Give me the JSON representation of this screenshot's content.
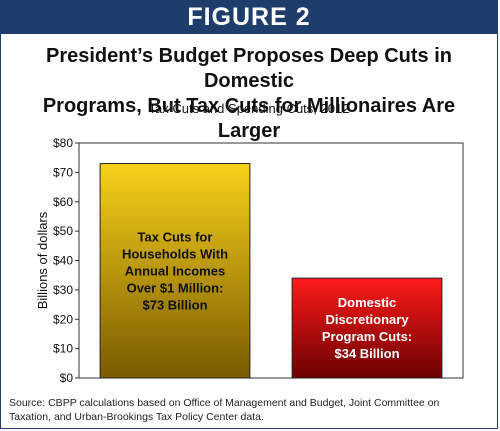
{
  "banner": "FIGURE 2",
  "title_line1": "President’s Budget Proposes Deep Cuts in Domestic",
  "title_line2": "Programs, But Tax Cuts for Millionaires Are Larger",
  "subtitle": "Tax Cuts and Spending Cuts, 2012",
  "source_line1": "Source: CBPP calculations based on Office of Management and Budget, Joint Committee on",
  "source_line2": "Taxation, and Urban-Brookings Tax Policy Center data.",
  "colors": {
    "banner": "#1f3d6b",
    "bar1_top": "#f7d21a",
    "bar1_bottom": "#7a5a00",
    "bar2_top": "#ff1a1a",
    "bar2_bottom": "#6a0000"
  },
  "chart_data": {
    "type": "bar",
    "title": "Tax Cuts and Spending Cuts, 2012",
    "ylabel": "Billions of dollars",
    "ylim": [
      0,
      80
    ],
    "yticks": [
      0,
      10,
      20,
      30,
      40,
      50,
      60,
      70,
      80
    ],
    "ytick_labels": [
      "$0",
      "$10",
      "$20",
      "$30",
      "$40",
      "$50",
      "$60",
      "$70",
      "$80"
    ],
    "grid": false,
    "categories": [
      "Tax Cuts for Households With Annual Incomes Over $1 Million: $73 Billion",
      "Domestic Discretionary Program Cuts: $34 Billion"
    ],
    "values": [
      73,
      34
    ],
    "bar_labels": [
      [
        "Tax Cuts for",
        "Households With",
        "Annual Incomes",
        "Over $1 Million:",
        "$73 Billion"
      ],
      [
        "Domestic",
        "Discretionary",
        "Program Cuts:",
        "$34 Billion"
      ]
    ]
  }
}
